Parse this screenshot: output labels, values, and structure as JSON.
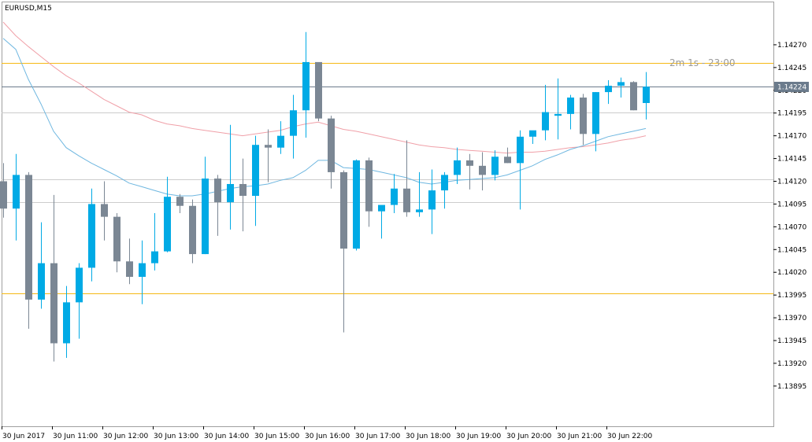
{
  "chart_data": {
    "type": "candlestick",
    "symbol_label": "EURUSD,M15",
    "timer_label": "2m 1s - 23:00",
    "y_range": [
      1.13875,
      1.14295
    ],
    "y_ticks": [
      "1.14270",
      "1.14245",
      "1.14220",
      "1.14195",
      "1.14170",
      "1.14145",
      "1.14120",
      "1.14095",
      "1.14070",
      "1.14045",
      "1.14020",
      "1.13995",
      "1.13970",
      "1.13945",
      "1.13920",
      "1.13895"
    ],
    "x_ticks": [
      "30 Jun 2017",
      "30 Jun 11:00",
      "30 Jun 12:00",
      "30 Jun 13:00",
      "30 Jun 14:00",
      "30 Jun 15:00",
      "30 Jun 16:00",
      "30 Jun 17:00",
      "30 Jun 18:00",
      "30 Jun 19:00",
      "30 Jun 20:00",
      "30 Jun 21:00",
      "30 Jun 22:00"
    ],
    "current_price": "1.14224",
    "horizontal_lines": [
      {
        "price": 1.1425,
        "style": "orange"
      },
      {
        "price": 1.13997,
        "style": "orange"
      },
      {
        "price": 1.14196,
        "style": "gray"
      },
      {
        "price": 1.14122,
        "style": "gray"
      },
      {
        "price": 1.14097,
        "style": "gray"
      }
    ],
    "candles": [
      {
        "o": 1.1412,
        "h": 1.1414,
        "l": 1.1408,
        "c": 1.1409
      },
      {
        "o": 1.1409,
        "h": 1.1415,
        "l": 1.14055,
        "c": 1.14127
      },
      {
        "o": 1.14127,
        "h": 1.1413,
        "l": 1.13958,
        "c": 1.1399
      },
      {
        "o": 1.1399,
        "h": 1.14075,
        "l": 1.1398,
        "c": 1.1403
      },
      {
        "o": 1.1403,
        "h": 1.14105,
        "l": 1.13922,
        "c": 1.13942
      },
      {
        "o": 1.13942,
        "h": 1.14005,
        "l": 1.13926,
        "c": 1.13987
      },
      {
        "o": 1.13987,
        "h": 1.1403,
        "l": 1.13947,
        "c": 1.14025
      },
      {
        "o": 1.14025,
        "h": 1.14112,
        "l": 1.1401,
        "c": 1.14095
      },
      {
        "o": 1.14095,
        "h": 1.1412,
        "l": 1.14055,
        "c": 1.14081
      },
      {
        "o": 1.14081,
        "h": 1.14085,
        "l": 1.1402,
        "c": 1.14032
      },
      {
        "o": 1.14032,
        "h": 1.14057,
        "l": 1.14007,
        "c": 1.14015
      },
      {
        "o": 1.14015,
        "h": 1.14055,
        "l": 1.13985,
        "c": 1.1403
      },
      {
        "o": 1.1403,
        "h": 1.14085,
        "l": 1.14022,
        "c": 1.14043
      },
      {
        "o": 1.14043,
        "h": 1.14125,
        "l": 1.14042,
        "c": 1.14103
      },
      {
        "o": 1.14103,
        "h": 1.14106,
        "l": 1.14085,
        "c": 1.14093
      },
      {
        "o": 1.14093,
        "h": 1.141,
        "l": 1.1403,
        "c": 1.1404
      },
      {
        "o": 1.1404,
        "h": 1.14147,
        "l": 1.1404,
        "c": 1.14123
      },
      {
        "o": 1.14123,
        "h": 1.14127,
        "l": 1.1406,
        "c": 1.14097
      },
      {
        "o": 1.14097,
        "h": 1.14182,
        "l": 1.14067,
        "c": 1.14117
      },
      {
        "o": 1.14117,
        "h": 1.14145,
        "l": 1.14065,
        "c": 1.14104
      },
      {
        "o": 1.14104,
        "h": 1.1417,
        "l": 1.14071,
        "c": 1.1416
      },
      {
        "o": 1.1416,
        "h": 1.14177,
        "l": 1.14119,
        "c": 1.14157
      },
      {
        "o": 1.14157,
        "h": 1.14186,
        "l": 1.1415,
        "c": 1.1417
      },
      {
        "o": 1.1417,
        "h": 1.14215,
        "l": 1.14145,
        "c": 1.14198
      },
      {
        "o": 1.14198,
        "h": 1.14284,
        "l": 1.14168,
        "c": 1.14251
      },
      {
        "o": 1.14251,
        "h": 1.1425,
        "l": 1.14186,
        "c": 1.14189
      },
      {
        "o": 1.14189,
        "h": 1.14192,
        "l": 1.14112,
        "c": 1.1413
      },
      {
        "o": 1.1413,
        "h": 1.14132,
        "l": 1.13954,
        "c": 1.14046
      },
      {
        "o": 1.14046,
        "h": 1.14144,
        "l": 1.14044,
        "c": 1.14143
      },
      {
        "o": 1.14143,
        "h": 1.14146,
        "l": 1.1407,
        "c": 1.14087
      },
      {
        "o": 1.14087,
        "h": 1.14091,
        "l": 1.14057,
        "c": 1.14094
      },
      {
        "o": 1.14094,
        "h": 1.14128,
        "l": 1.14085,
        "c": 1.14112
      },
      {
        "o": 1.14112,
        "h": 1.14165,
        "l": 1.14081,
        "c": 1.14086
      },
      {
        "o": 1.14086,
        "h": 1.1413,
        "l": 1.14081,
        "c": 1.14089
      },
      {
        "o": 1.14089,
        "h": 1.14133,
        "l": 1.14062,
        "c": 1.1411
      },
      {
        "o": 1.1411,
        "h": 1.1413,
        "l": 1.1409,
        "c": 1.14127
      },
      {
        "o": 1.14127,
        "h": 1.14157,
        "l": 1.14117,
        "c": 1.14143
      },
      {
        "o": 1.14143,
        "h": 1.1415,
        "l": 1.14111,
        "c": 1.14137
      },
      {
        "o": 1.14137,
        "h": 1.14152,
        "l": 1.1411,
        "c": 1.14127
      },
      {
        "o": 1.14127,
        "h": 1.14154,
        "l": 1.14121,
        "c": 1.14147
      },
      {
        "o": 1.14147,
        "h": 1.14157,
        "l": 1.1414,
        "c": 1.1414
      },
      {
        "o": 1.1414,
        "h": 1.14176,
        "l": 1.14089,
        "c": 1.14169
      },
      {
        "o": 1.14169,
        "h": 1.14175,
        "l": 1.14161,
        "c": 1.14176
      },
      {
        "o": 1.14176,
        "h": 1.14226,
        "l": 1.14165,
        "c": 1.14196
      },
      {
        "o": 1.14192,
        "h": 1.14233,
        "l": 1.14166,
        "c": 1.14194
      },
      {
        "o": 1.14194,
        "h": 1.14215,
        "l": 1.14177,
        "c": 1.14212
      },
      {
        "o": 1.14212,
        "h": 1.14216,
        "l": 1.1416,
        "c": 1.14172
      },
      {
        "o": 1.14172,
        "h": 1.14218,
        "l": 1.14153,
        "c": 1.14218
      },
      {
        "o": 1.14218,
        "h": 1.14231,
        "l": 1.14205,
        "c": 1.14225
      },
      {
        "o": 1.14225,
        "h": 1.14234,
        "l": 1.14212,
        "c": 1.14229
      },
      {
        "o": 1.14229,
        "h": 1.1423,
        "l": 1.14198,
        "c": 1.14198
      },
      {
        "o": 1.14206,
        "h": 1.1424,
        "l": 1.14188,
        "c": 1.14224
      }
    ],
    "ma_fast": [
      1.14277,
      1.14265,
      1.14232,
      1.14205,
      1.14175,
      1.14157,
      1.14148,
      1.1414,
      1.14133,
      1.14126,
      1.14118,
      1.14114,
      1.1411,
      1.14106,
      1.14104,
      1.14104,
      1.14106,
      1.14109,
      1.14112,
      1.14114,
      1.14115,
      1.14117,
      1.14121,
      1.14124,
      1.14132,
      1.14143,
      1.14143,
      1.14135,
      1.14134,
      1.14133,
      1.1413,
      1.14127,
      1.14124,
      1.14119,
      1.14117,
      1.14119,
      1.14121,
      1.14122,
      1.14123,
      1.14124,
      1.14127,
      1.14132,
      1.14137,
      1.14144,
      1.14149,
      1.14155,
      1.14159,
      1.14164,
      1.14169,
      1.14172,
      1.14175,
      1.14178
    ],
    "ma_slow": [
      1.14295,
      1.1428,
      1.14268,
      1.14257,
      1.14246,
      1.14236,
      1.14228,
      1.14219,
      1.1421,
      1.14203,
      1.14196,
      1.14193,
      1.14187,
      1.14183,
      1.14181,
      1.14178,
      1.14176,
      1.14174,
      1.14172,
      1.1417,
      1.14172,
      1.14174,
      1.14176,
      1.1418,
      1.14183,
      1.14185,
      1.14181,
      1.14177,
      1.14175,
      1.14172,
      1.14169,
      1.14166,
      1.14163,
      1.1416,
      1.14158,
      1.14157,
      1.14155,
      1.14154,
      1.14153,
      1.14152,
      1.14151,
      1.14152,
      1.14152,
      1.14153,
      1.14155,
      1.14157,
      1.14158,
      1.1416,
      1.14162,
      1.14165,
      1.14167,
      1.1417
    ],
    "colors": {
      "bull": "#00aae5",
      "bear": "#7b8794",
      "ma_fast": "#6fb7e0",
      "ma_slow": "#f0a0a8",
      "level_orange": "#f5b915",
      "level_gray": "#cccccc",
      "current_line": "#6b7b8c",
      "price_tag": "#6b7b8c"
    }
  }
}
